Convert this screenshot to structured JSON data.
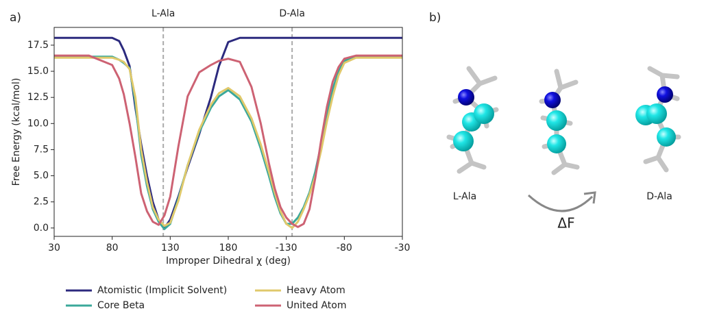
{
  "panel_labels": [
    "a)",
    "b)"
  ],
  "chart_data": {
    "type": "line",
    "x_label": "Improper Dihedral χ (deg)",
    "y_label": "Free Energy (kcal/mol)",
    "xlim": [
      30,
      330
    ],
    "ylim": [
      -0.8,
      19.2
    ],
    "xticks": [
      30,
      80,
      130,
      180,
      {
        "value": 230,
        "label": "-130"
      },
      {
        "value": 280,
        "label": "-80"
      },
      {
        "value": 330,
        "label": "-30"
      }
    ],
    "yticks": [
      {
        "value": 0,
        "label": "0.0"
      },
      2.5,
      {
        "value": 5,
        "label": "5.0"
      },
      7.5,
      {
        "value": 10,
        "label": "10.0"
      },
      12.5,
      {
        "value": 15,
        "label": "15.0"
      },
      17.5
    ],
    "annotations": [
      {
        "text": "L-Ala",
        "x": 124
      },
      {
        "text": "D-Ala",
        "x": 235
      }
    ],
    "x": [
      30,
      60,
      80,
      86,
      90,
      95,
      100,
      105,
      110,
      115,
      120,
      125,
      130,
      137,
      145,
      155,
      165,
      172,
      180,
      190,
      200,
      208,
      215,
      220,
      225,
      230,
      235,
      240,
      245,
      250,
      255,
      260,
      265,
      270,
      275,
      280,
      290,
      310,
      330
    ],
    "series": [
      {
        "name": "Atomistic (Implicit Solvent)",
        "color": "#2c2a7e",
        "values": [
          18.2,
          18.2,
          18.2,
          17.9,
          17,
          15.5,
          11.5,
          8,
          5,
          2.5,
          0.8,
          0,
          0.8,
          3,
          5.8,
          9,
          12.5,
          15.5,
          17.8,
          18.2,
          18.2,
          18.2,
          18.2,
          18.2,
          18.2,
          18.2,
          18.2,
          18.2,
          18.2,
          18.2,
          18.2,
          18.2,
          18.2,
          18.2,
          18.2,
          18.2,
          18.2,
          18.2,
          18.2
        ]
      },
      {
        "name": "Core Beta",
        "color": "#3aa89a",
        "values": [
          16.4,
          16.4,
          16.4,
          16.1,
          15.8,
          15.3,
          12,
          7,
          4,
          1.8,
          0.6,
          -0.1,
          0.4,
          2.8,
          6,
          9.2,
          11.5,
          12.6,
          13.2,
          12.3,
          10.2,
          7.6,
          5,
          3,
          1.4,
          0.4,
          0.4,
          1,
          2,
          3.4,
          5.4,
          8,
          10.8,
          13.3,
          15,
          16,
          16.4,
          16.4,
          16.4
        ]
      },
      {
        "name": "Heavy Atom",
        "color": "#e0c96b",
        "values": [
          16.3,
          16.3,
          16.3,
          16.1,
          15.9,
          15.2,
          12.5,
          7.5,
          4.4,
          2,
          0.8,
          0.2,
          0.5,
          2.6,
          6,
          9.4,
          11.8,
          12.9,
          13.4,
          12.6,
          10.5,
          8,
          5.4,
          3.4,
          1.6,
          0.4,
          0,
          0.6,
          1.8,
          3.2,
          5,
          7.4,
          10.2,
          12.6,
          14.6,
          15.8,
          16.3,
          16.3,
          16.3
        ]
      },
      {
        "name": "United Atom",
        "color": "#cd6273",
        "values": [
          16.5,
          16.5,
          15.6,
          14.3,
          12.8,
          10,
          6.8,
          3.3,
          1.6,
          0.6,
          0.3,
          1.2,
          3,
          7.8,
          12.6,
          14.9,
          15.6,
          16,
          16.2,
          15.9,
          13.5,
          10,
          6.2,
          3.8,
          2,
          1,
          0.4,
          0.1,
          0.4,
          1.8,
          4.8,
          8.4,
          11.6,
          14,
          15.4,
          16.2,
          16.5,
          16.5,
          16.5
        ]
      }
    ]
  },
  "illustration": {
    "labels": [
      "L-Ala",
      "D-Ala"
    ],
    "arrow_label": "ΔF"
  }
}
